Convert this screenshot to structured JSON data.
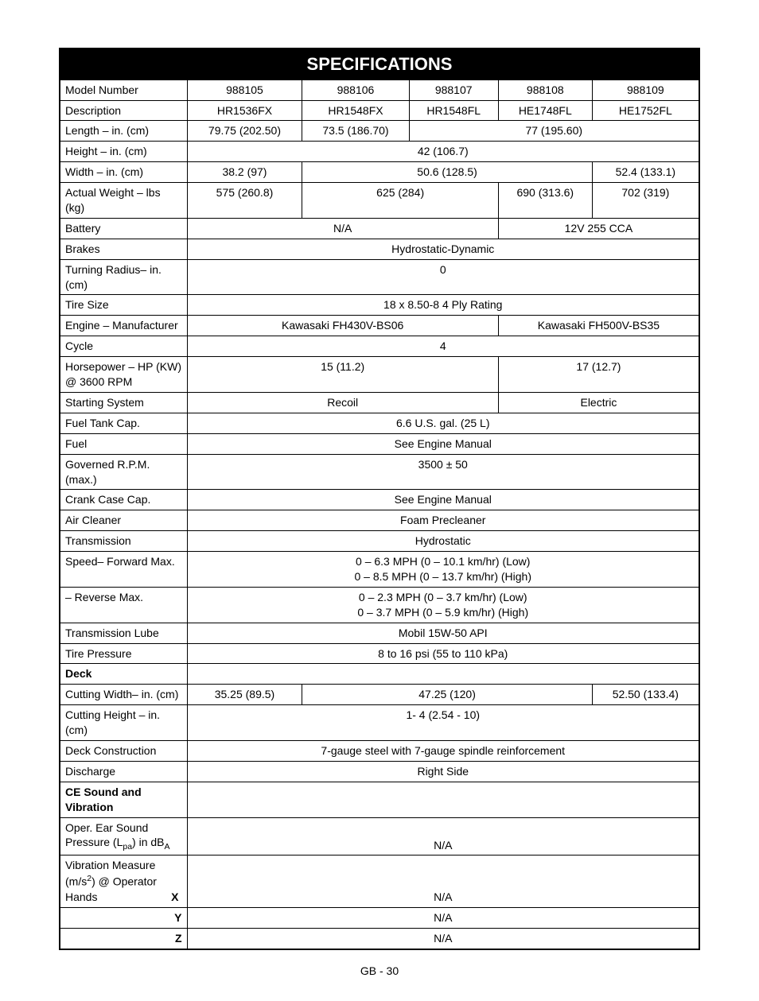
{
  "title": "SPECIFICATIONS",
  "footer": "GB - 30",
  "labels": {
    "model_number": "Model Number",
    "description": "Description",
    "length": "Length – in. (cm)",
    "height": "Height – in. (cm)",
    "width": "Width – in. (cm)",
    "actual_weight": "Actual Weight – lbs (kg)",
    "battery": "Battery",
    "brakes": "Brakes",
    "turning_radius": "Turning Radius– in. (cm)",
    "tire_size": "Tire Size",
    "engine_mfr": "Engine – Manufacturer",
    "cycle": "Cycle",
    "horsepower": "Horsepower – HP (KW) @ 3600 RPM",
    "starting_system": "Starting System",
    "fuel_tank": "Fuel Tank Cap.",
    "fuel": "Fuel",
    "governed_rpm": "Governed R.P.M. (max.)",
    "crank_case": "Crank Case Cap.",
    "air_cleaner": "Air Cleaner",
    "transmission": "Transmission",
    "speed_fwd": "Speed– Forward Max.",
    "speed_rev": "– Reverse Max.",
    "trans_lube": "Transmission Lube",
    "tire_pressure": "Tire Pressure",
    "deck": "Deck",
    "cutting_width": "Cutting Width– in. (cm)",
    "cutting_height": "Cutting Height – in. (cm)",
    "deck_construction": "Deck Construction",
    "discharge": "Discharge",
    "ce_sound": "CE Sound and Vibration",
    "oper_ear_1": "Oper. Ear Sound Pressure (L",
    "oper_ear_sub": "pa",
    "oper_ear_2": ") in dB",
    "oper_ear_sub2": "A",
    "vib_1": "Vibration Measure (m/s",
    "vib_sup": "2",
    "vib_2": ") @ Operator Hands",
    "x": "X",
    "y": "Y",
    "z": "Z"
  },
  "cols": {
    "model": [
      "988105",
      "988106",
      "988107",
      "988108",
      "988109"
    ],
    "desc": [
      "HR1536FX",
      "HR1548FX",
      "HR1548FL",
      "HE1748FL",
      "HE1752FL"
    ]
  },
  "rows": {
    "length": {
      "c1": "79.75 (202.50)",
      "c2": "73.5 (186.70)",
      "c345": "77 (195.60)"
    },
    "height": "42 (106.7)",
    "width": {
      "c1": "38.2 (97)",
      "c234": "50.6 (128.5)",
      "c5": "52.4 (133.1)"
    },
    "weight": {
      "c1": "575 (260.8)",
      "c23": "625 (284)",
      "c4": "690 (313.6)",
      "c5": "702 (319)"
    },
    "battery": {
      "c123": "N/A",
      "c45": "12V 255 CCA"
    },
    "brakes": "Hydrostatic-Dynamic",
    "turning_radius": "0",
    "tire_size": "18 x 8.50-8 4 Ply Rating",
    "engine": {
      "c123": "Kawasaki FH430V-BS06",
      "c45": "Kawasaki FH500V-BS35"
    },
    "cycle": "4",
    "hp": {
      "c123": "15 (11.2)",
      "c45": "17 (12.7)"
    },
    "starting": {
      "c123": "Recoil",
      "c45": "Electric"
    },
    "fuel_tank": "6.6 U.S. gal. (25 L)",
    "fuel": "See Engine Manual",
    "governed_rpm": "3500 ± 50",
    "crank_case": "See Engine Manual",
    "air_cleaner": "Foam Precleaner",
    "transmission": "Hydrostatic",
    "speed_fwd_low": "0 – 6.3 MPH (0 – 10.1 km/hr) (Low)",
    "speed_fwd_high": "0 – 8.5 MPH (0 – 13.7 km/hr) (High)",
    "speed_rev_low": "0 – 2.3 MPH (0 – 3.7 km/hr) (Low)",
    "speed_rev_high": "0 – 3.7 MPH (0 – 5.9 km/hr) (High)",
    "trans_lube": "Mobil 15W-50 API",
    "tire_pressure": "8 to 16 psi (55 to 110 kPa)",
    "cutting_width": {
      "c1": "35.25 (89.5)",
      "c234": "47.25 (120)",
      "c5": "52.50 (133.4)"
    },
    "cutting_height": "1- 4 (2.54 - 10)",
    "deck_construction": "7-gauge steel with 7-gauge spindle reinforcement",
    "discharge": "Right Side",
    "na": "N/A"
  }
}
